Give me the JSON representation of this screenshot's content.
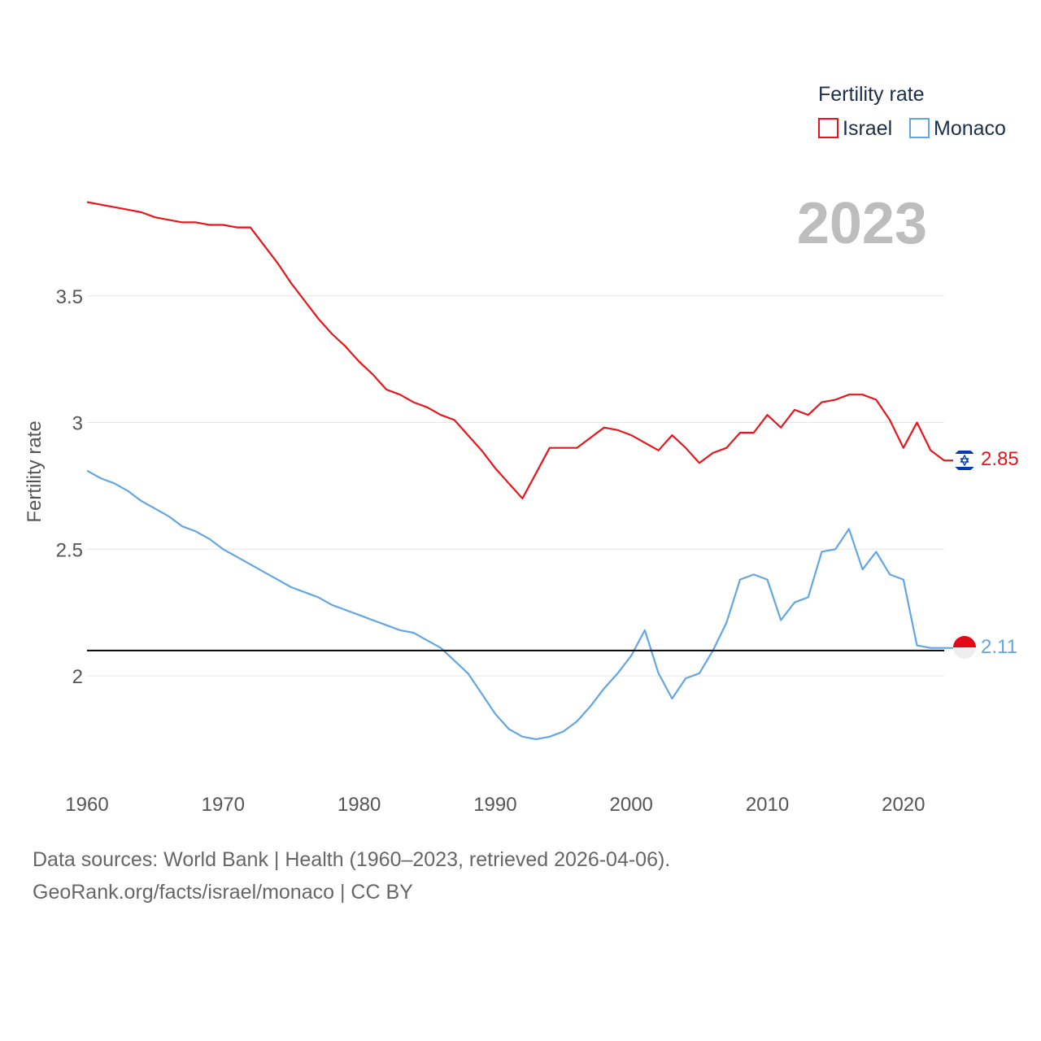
{
  "chart_data": {
    "type": "line",
    "title": "Fertility rate",
    "ylabel": "Fertility rate",
    "xlabel": "",
    "year_label": "2023",
    "xlim": [
      1960,
      2023
    ],
    "ylim": [
      1.6,
      3.95
    ],
    "x_ticks": [
      1960,
      1970,
      1980,
      1990,
      2000,
      2010,
      2020
    ],
    "y_ticks": [
      2,
      2.5,
      3,
      3.5
    ],
    "y_tick_labels": [
      "2",
      "2.5",
      "3",
      "3.5"
    ],
    "reference_line": 2.1,
    "legend": {
      "title": "Fertility rate",
      "position": "top-right"
    },
    "x": [
      1960,
      1961,
      1962,
      1963,
      1964,
      1965,
      1966,
      1967,
      1968,
      1969,
      1970,
      1971,
      1972,
      1973,
      1974,
      1975,
      1976,
      1977,
      1978,
      1979,
      1980,
      1981,
      1982,
      1983,
      1984,
      1985,
      1986,
      1987,
      1988,
      1989,
      1990,
      1991,
      1992,
      1993,
      1994,
      1995,
      1996,
      1997,
      1998,
      1999,
      2000,
      2001,
      2002,
      2003,
      2004,
      2005,
      2006,
      2007,
      2008,
      2009,
      2010,
      2011,
      2012,
      2013,
      2014,
      2015,
      2016,
      2017,
      2018,
      2019,
      2020,
      2021,
      2022,
      2023
    ],
    "series": [
      {
        "name": "Israel",
        "color": "#e8151b",
        "end_label": "2.85",
        "flag": "israel-flag",
        "values": [
          3.87,
          3.86,
          3.85,
          3.84,
          3.83,
          3.81,
          3.8,
          3.79,
          3.79,
          3.78,
          3.78,
          3.77,
          3.77,
          3.7,
          3.63,
          3.55,
          3.48,
          3.41,
          3.35,
          3.3,
          3.24,
          3.19,
          3.13,
          3.11,
          3.08,
          3.06,
          3.03,
          3.01,
          2.95,
          2.89,
          2.82,
          2.76,
          2.7,
          2.8,
          2.9,
          2.9,
          2.9,
          2.94,
          2.98,
          2.97,
          2.95,
          2.92,
          2.89,
          2.95,
          2.9,
          2.84,
          2.88,
          2.9,
          2.96,
          2.96,
          3.03,
          2.98,
          3.05,
          3.03,
          3.08,
          3.09,
          3.11,
          3.11,
          3.09,
          3.01,
          2.9,
          3.0,
          2.89,
          2.85
        ]
      },
      {
        "name": "Monaco",
        "color": "#62a6e6",
        "end_label": "2.11",
        "flag": "monaco-flag",
        "values": [
          2.81,
          2.78,
          2.76,
          2.73,
          2.69,
          2.66,
          2.63,
          2.59,
          2.57,
          2.54,
          2.5,
          2.47,
          2.44,
          2.41,
          2.38,
          2.35,
          2.33,
          2.31,
          2.28,
          2.26,
          2.24,
          2.22,
          2.2,
          2.18,
          2.17,
          2.14,
          2.11,
          2.06,
          2.01,
          1.93,
          1.85,
          1.79,
          1.76,
          1.75,
          1.76,
          1.78,
          1.82,
          1.88,
          1.95,
          2.01,
          2.08,
          2.18,
          2.01,
          1.91,
          1.99,
          2.01,
          2.1,
          2.21,
          2.38,
          2.4,
          2.38,
          2.22,
          2.29,
          2.31,
          2.49,
          2.5,
          2.58,
          2.42,
          2.49,
          2.4,
          2.38,
          2.12,
          2.11,
          2.11
        ]
      }
    ]
  },
  "footer": {
    "line1": "Data sources: World Bank | Health (1960–2023, retrieved 2026-04-06).",
    "line2": "GeoRank.org/facts/israel/monaco | CC BY"
  }
}
